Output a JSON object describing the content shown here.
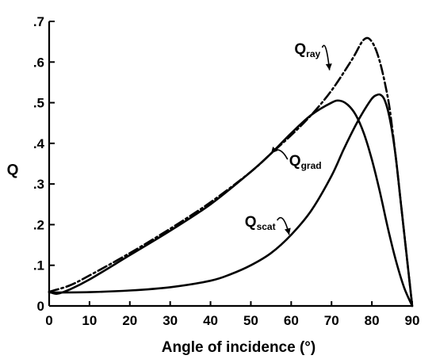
{
  "chart_data": {
    "type": "line",
    "title": "",
    "xlabel": "Angle of incidence (°)",
    "ylabel": "Q",
    "xlim": [
      0,
      90
    ],
    "ylim": [
      0,
      0.7
    ],
    "grid": false,
    "legend": "none",
    "x_ticks": [
      0,
      10,
      20,
      30,
      40,
      50,
      60,
      70,
      80,
      90
    ],
    "x_tick_labels": [
      "0",
      "10",
      "20",
      "30",
      "40",
      "50",
      "60",
      "70",
      "80",
      "90"
    ],
    "y_ticks": [
      0,
      0.1,
      0.2,
      0.3,
      0.4,
      0.5,
      0.6,
      0.7
    ],
    "y_tick_labels": [
      "0",
      ".1",
      ".2",
      ".3",
      ".4",
      ".5",
      ".6",
      ".7"
    ],
    "series": [
      {
        "name": "Q_ray",
        "label_main": "Q",
        "label_sub": "ray",
        "style": "dashdot",
        "color": "#000000",
        "x": [
          0,
          5,
          10,
          20,
          30,
          40,
          50,
          55,
          60,
          65,
          70,
          75,
          78,
          80,
          82,
          84,
          85,
          86,
          87,
          88,
          89,
          90
        ],
        "y": [
          0.035,
          0.05,
          0.075,
          0.13,
          0.19,
          0.255,
          0.33,
          0.375,
          0.42,
          0.47,
          0.53,
          0.605,
          0.655,
          0.65,
          0.6,
          0.51,
          0.44,
          0.36,
          0.27,
          0.18,
          0.09,
          0.0
        ]
      },
      {
        "name": "Q_grad",
        "label_main": "Q",
        "label_sub": "grad",
        "style": "solid",
        "color": "#000000",
        "x": [
          0,
          2,
          5,
          10,
          20,
          30,
          40,
          50,
          55,
          60,
          65,
          70,
          72,
          74,
          76,
          78,
          80,
          82,
          84,
          86,
          88,
          90
        ],
        "y": [
          0.035,
          0.03,
          0.04,
          0.065,
          0.125,
          0.185,
          0.25,
          0.33,
          0.375,
          0.425,
          0.47,
          0.5,
          0.505,
          0.495,
          0.47,
          0.425,
          0.36,
          0.28,
          0.19,
          0.11,
          0.045,
          0.0
        ]
      },
      {
        "name": "Q_scat",
        "label_main": "Q",
        "label_sub": "scat",
        "style": "solid",
        "color": "#000000",
        "x": [
          0,
          10,
          20,
          30,
          40,
          45,
          50,
          55,
          60,
          65,
          70,
          73,
          76,
          78,
          80,
          81,
          82,
          83,
          84,
          85,
          86,
          87,
          88,
          89,
          90
        ],
        "y": [
          0.033,
          0.034,
          0.038,
          0.046,
          0.062,
          0.078,
          0.1,
          0.13,
          0.175,
          0.235,
          0.32,
          0.385,
          0.445,
          0.48,
          0.51,
          0.518,
          0.52,
          0.51,
          0.48,
          0.43,
          0.36,
          0.27,
          0.18,
          0.09,
          0.0
        ]
      }
    ],
    "annotations": [
      {
        "series": "Q_ray",
        "main": "Q",
        "sub": "ray",
        "text_x": 60.8,
        "text_y": 0.62,
        "arrow_to_x": 69.5,
        "arrow_to_y": 0.58
      },
      {
        "series": "Q_grad",
        "main": "Q",
        "sub": "grad",
        "text_x": 59.5,
        "text_y": 0.345,
        "arrow_to_x": 55.0,
        "arrow_to_y": 0.375
      },
      {
        "series": "Q_scat",
        "main": "Q",
        "sub": "scat",
        "text_x": 48.5,
        "text_y": 0.195,
        "arrow_to_x": 59.5,
        "arrow_to_y": 0.175
      }
    ]
  }
}
